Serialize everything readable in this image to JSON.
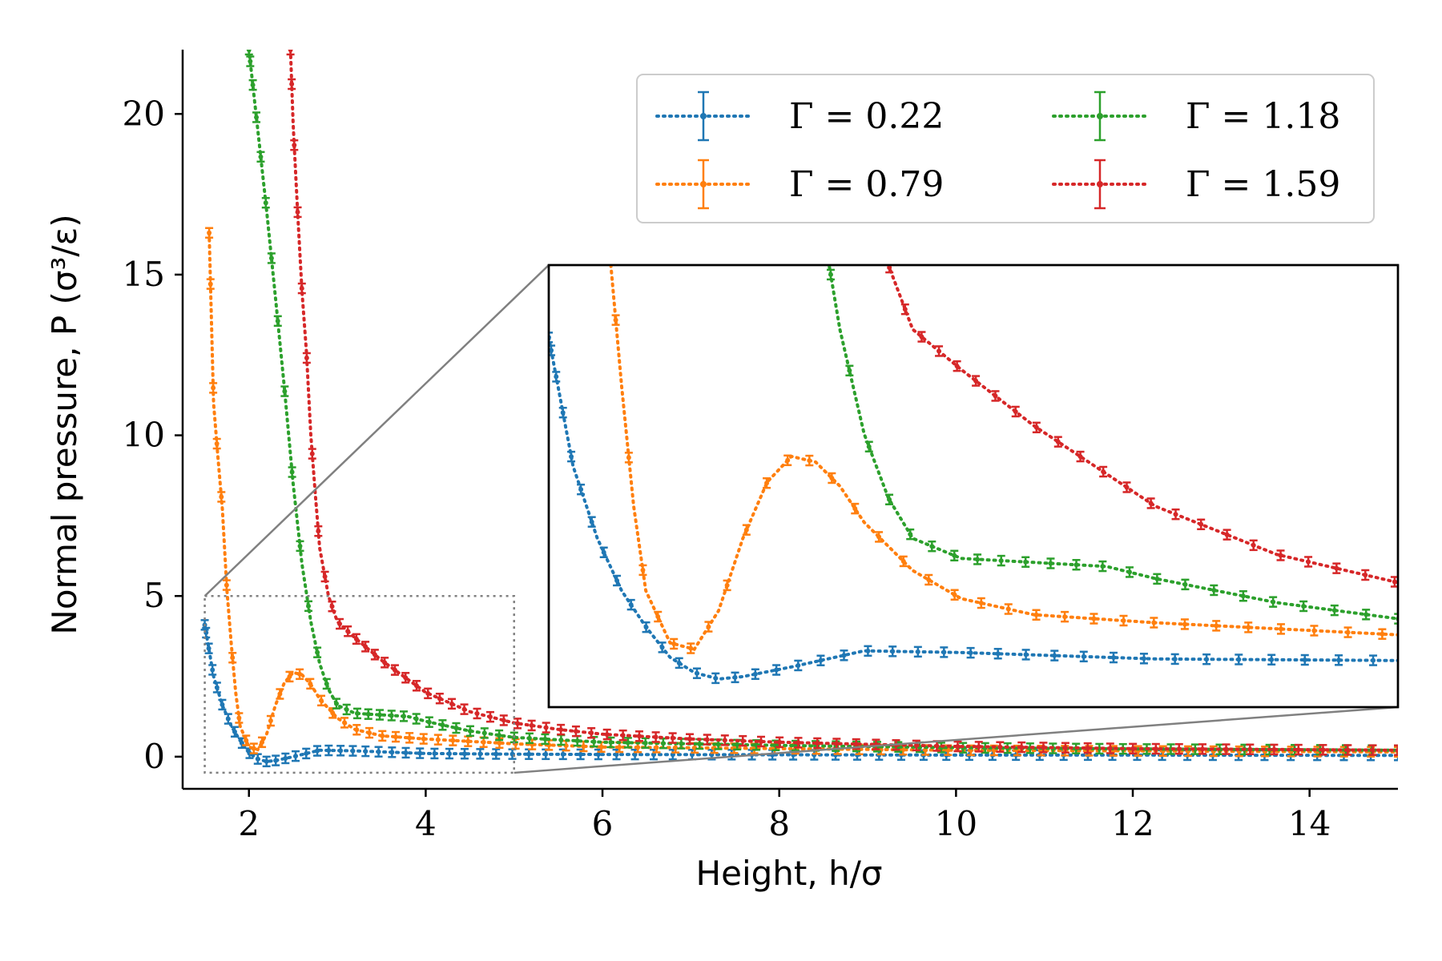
{
  "chart_data": {
    "type": "line",
    "title": "",
    "xlabel": "Height, h/σ",
    "ylabel": "Normal pressure, P (σ³/ε)",
    "xlim": [
      1.25,
      15.0
    ],
    "ylim": [
      -1.0,
      22.0
    ],
    "xticks": [
      2,
      4,
      6,
      8,
      10,
      12,
      14
    ],
    "yticks": [
      0,
      5,
      10,
      15,
      20
    ],
    "xtick_labels": [
      "2",
      "4",
      "6",
      "8",
      "10",
      "12",
      "14"
    ],
    "ytick_labels": [
      "0",
      "5",
      "10",
      "15",
      "20"
    ],
    "grid": false,
    "legend_position": "upper-right",
    "series": [
      {
        "name": "Γ = 0.22",
        "color": "#1f77b4",
        "x": [
          1.5,
          1.6,
          1.7,
          1.8,
          1.9,
          2.0,
          2.1,
          2.2,
          2.3,
          2.5,
          2.8,
          3.2,
          4.0,
          5.0,
          6.0,
          8.0,
          10.0,
          12.0,
          15.0
        ],
        "y": [
          4.1,
          2.5,
          1.6,
          0.95,
          0.5,
          0.12,
          -0.07,
          -0.15,
          -0.12,
          0.0,
          0.2,
          0.18,
          0.1,
          0.08,
          0.07,
          0.06,
          0.05,
          0.05,
          0.04
        ]
      },
      {
        "name": "Γ = 0.79",
        "color": "#ff7f0e",
        "x": [
          1.55,
          1.6,
          1.65,
          1.7,
          1.75,
          1.8,
          1.85,
          1.9,
          2.0,
          2.1,
          2.2,
          2.3,
          2.4,
          2.5,
          2.6,
          2.7,
          2.8,
          3.0,
          3.2,
          3.5,
          4.0,
          5.0,
          6.0,
          8.0,
          10.0,
          12.0,
          15.0
        ],
        "y": [
          16.3,
          11.0,
          9.3,
          7.7,
          5.2,
          3.5,
          2.0,
          0.95,
          0.3,
          0.22,
          0.7,
          1.6,
          2.3,
          2.62,
          2.55,
          2.25,
          1.8,
          1.2,
          0.85,
          0.65,
          0.55,
          0.4,
          0.3,
          0.25,
          0.2,
          0.18,
          0.15
        ]
      },
      {
        "name": "Γ = 1.18",
        "color": "#2ca02c",
        "x": [
          2.0,
          2.1,
          2.2,
          2.3,
          2.4,
          2.5,
          2.6,
          2.7,
          2.8,
          2.9,
          3.0,
          3.2,
          3.5,
          3.8,
          4.0,
          4.5,
          5.0,
          6.0,
          8.0,
          10.0,
          12.0,
          15.0
        ],
        "y": [
          22.0,
          19.5,
          17.0,
          14.3,
          11.5,
          8.5,
          6.0,
          4.2,
          2.9,
          2.1,
          1.6,
          1.35,
          1.3,
          1.25,
          1.1,
          0.8,
          0.6,
          0.45,
          0.35,
          0.28,
          0.24,
          0.2
        ]
      },
      {
        "name": "Γ = 1.59",
        "color": "#d62728",
        "x": [
          2.47,
          2.5,
          2.55,
          2.6,
          2.65,
          2.7,
          2.75,
          2.8,
          2.9,
          3.0,
          3.2,
          3.5,
          4.0,
          4.5,
          5.0,
          5.5,
          6.0,
          7.0,
          8.0,
          10.0,
          12.0,
          15.0
        ],
        "y": [
          22.0,
          19.7,
          17.0,
          14.5,
          12.6,
          10.0,
          8.2,
          6.5,
          5.0,
          4.2,
          3.7,
          3.0,
          2.0,
          1.4,
          1.05,
          0.85,
          0.7,
          0.55,
          0.45,
          0.32,
          0.25,
          0.2
        ]
      }
    ],
    "inset": {
      "description": "zoom of region",
      "xlim": [
        1.5,
        5.0
      ],
      "ylim": [
        -0.5,
        5.0
      ]
    }
  }
}
